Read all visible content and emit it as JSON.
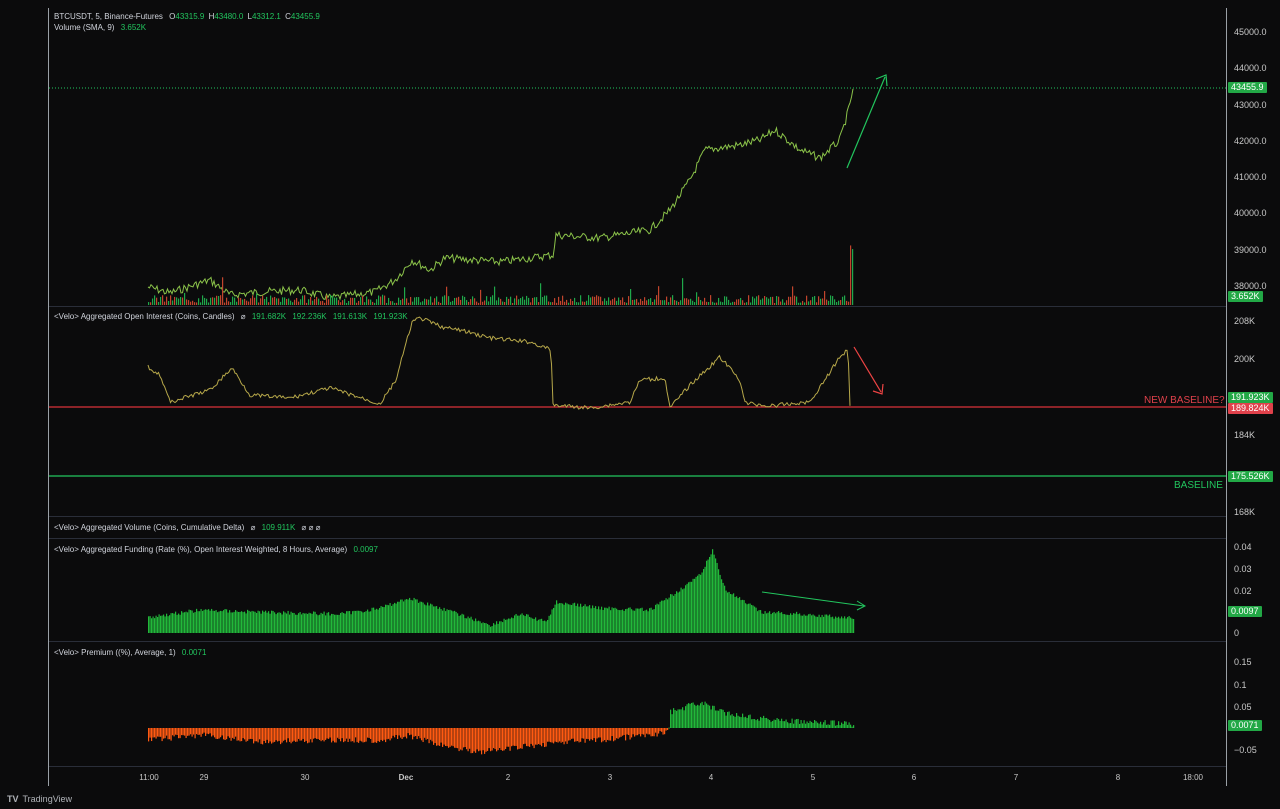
{
  "main_legend": {
    "symbol": "BTCUSDT, 5, Binance-Futures",
    "o_label": "O",
    "o_val": "43315.9",
    "h_label": "H",
    "h_val": "43480.0",
    "l_label": "L",
    "l_val": "43312.1",
    "c_label": "C",
    "c_val": "43455.9",
    "volume": "Volume (SMA, 9)",
    "volume_val": "3.652K"
  },
  "price_axis": [
    "45000.0",
    "44000.0",
    "43000.0",
    "42000.0",
    "41000.0",
    "40000.0",
    "39000.0",
    "38000.0"
  ],
  "price_badge": "43455.9",
  "volume_badge": "3.652K",
  "oi_legend": {
    "title": "<Velo> Aggregated Open Interest (Coins, Candles)",
    "sym": "⌀",
    "v1": "191.682K",
    "v2": "192.236K",
    "v3": "191.613K",
    "v4": "191.923K"
  },
  "oi_axis": [
    "208K",
    "200K",
    "184K",
    "168K"
  ],
  "oi_badge": "191.923K",
  "oi_red_badge": "189.824K",
  "oi_green_badge": "175.526K",
  "new_baseline": "NEW BASELINE?",
  "baseline": "BASELINE",
  "cvd_legend": {
    "title": "<Velo> Aggregated Volume (Coins, Cumulative Delta)",
    "sym": "⌀",
    "val": "109.911K",
    "rest": "⌀ ⌀ ⌀"
  },
  "funding_legend": {
    "title": "<Velo> Aggregated Funding (Rate (%), Open Interest Weighted, 8 Hours, Average)",
    "val": "0.0097"
  },
  "funding_axis": [
    "0.04",
    "0.03",
    "0.02",
    "0"
  ],
  "funding_badge": "0.0097",
  "premium_legend": {
    "title": "<Velo> Premium ((%), Average, 1)",
    "val": "0.0071"
  },
  "premium_axis": [
    "0.15",
    "0.1",
    "0.05",
    "−0.05"
  ],
  "premium_badge": "0.0071",
  "time_axis": [
    "11:00",
    "29",
    "30",
    "Dec",
    "2",
    "3",
    "4",
    "5",
    "6",
    "7",
    "8",
    "18:00"
  ],
  "brand": "TradingView",
  "colors": {
    "up": "#22c55e",
    "down": "#ef5350",
    "baseline_red": "#d9323a",
    "baseline_green": "#22c55e",
    "orange": "#ff5a12",
    "bg": "#0b0b0c"
  },
  "chart_data": {
    "type": "line",
    "title": "BTCUSDT, 5, Binance-Futures",
    "xlabel": "",
    "ylabel": "",
    "x": [
      "11:00",
      "29",
      "30",
      "Dec",
      "2",
      "3",
      "4",
      "5"
    ],
    "ylim": [
      37700,
      45300
    ],
    "series": [
      {
        "name": "BTCUSDT",
        "values": [
          37900,
          37950,
          37950,
          38700,
          38800,
          39450,
          41600,
          42000
        ]
      }
    ],
    "last_price": 43455.9
  }
}
